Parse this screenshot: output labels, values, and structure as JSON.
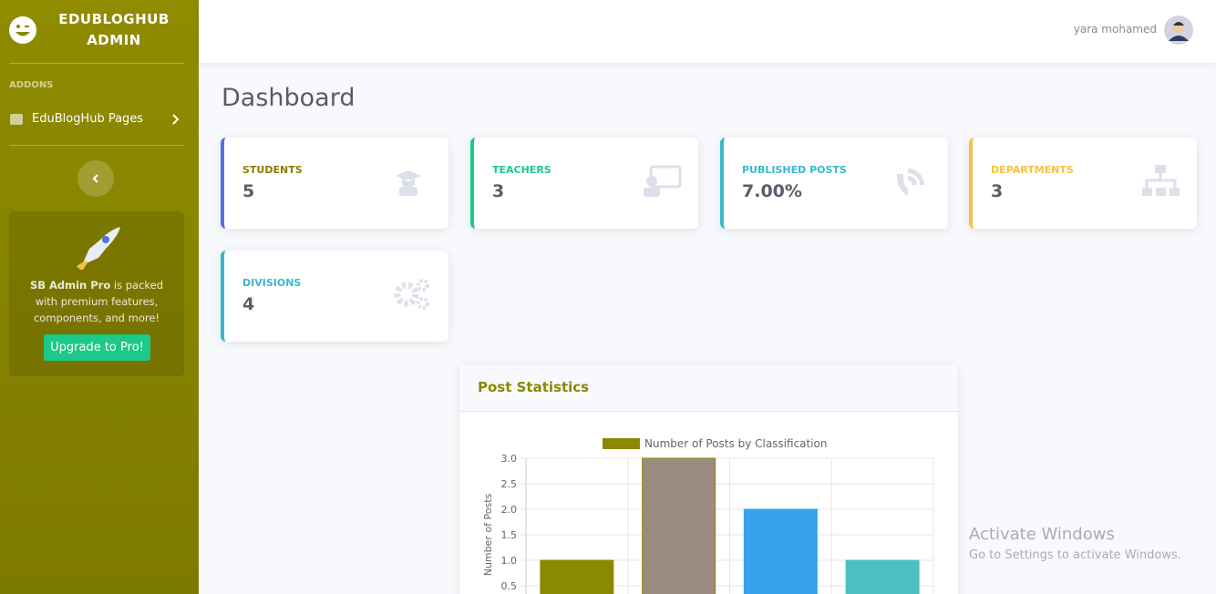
{
  "sidebar": {
    "brand": "EDUBLOGHUB ADMIN",
    "heading": "ADDONS",
    "nav": [
      "EduBlogHub Pages"
    ],
    "promo": {
      "strong": "SB Admin Pro",
      "text": " is packed with premium features, components, and more!",
      "button": "Upgrade to Pro!"
    }
  },
  "topbar": {
    "user": "yara mohamed"
  },
  "page_title": "Dashboard",
  "cards": [
    {
      "label": "STUDENTS",
      "value": 5,
      "color": "#4e73df",
      "label_color": "#8a7d00"
    },
    {
      "label": "TEACHERS",
      "value": 3,
      "color": "#1cc88a",
      "label_color": "#1cc88a"
    },
    {
      "label": "PUBLISHED POSTS",
      "value": "7.00%",
      "color": "#36b9cc",
      "label_color": "#36b9cc"
    },
    {
      "label": "DEPARTMENTS",
      "value": 3,
      "color": "#f6c23e",
      "label_color": "#f6c23e"
    },
    {
      "label": "DIVISIONS",
      "value": 4,
      "color": "#36b9cc",
      "label_color": "#36b9cc"
    }
  ],
  "chart_card": {
    "title": "Post Statistics"
  },
  "chart_data": {
    "type": "bar",
    "categories": [
      null,
      null,
      null,
      null
    ],
    "series": [
      {
        "name": "Number of Posts by Classification",
        "color": "#8a8a00",
        "values": [
          1,
          3,
          2,
          1
        ],
        "colors": [
          "#8a8a00",
          "#9b8b7e",
          "#36a2eb",
          "#4bc0c0"
        ],
        "border_colors": [
          "#8a8a00",
          "#8a8a00",
          "#36a2eb",
          "#4bc0c0"
        ]
      }
    ],
    "ylabel": "Number of Posts",
    "ylim": [
      0,
      3
    ],
    "yticks": [
      0.5,
      {
        "value": 1,
        "label": "1.0"
      },
      1.5,
      {
        "value": 2,
        "label": "2.0"
      },
      2.5,
      {
        "value": 3,
        "label": "3.0"
      }
    ],
    "grid": true
  },
  "windows_notice": {
    "title": "Activate Windows",
    "text": "Go to Settings to activate Windows."
  }
}
